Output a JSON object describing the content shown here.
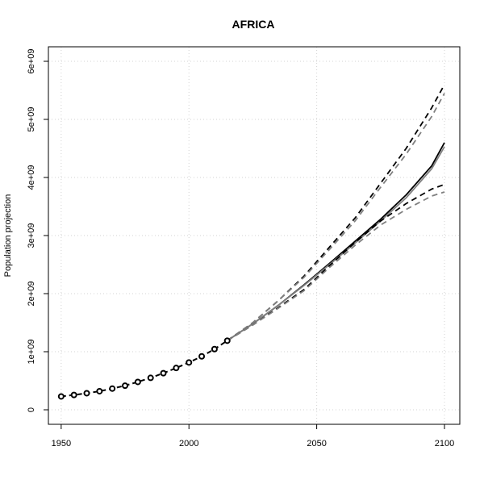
{
  "chart_data": {
    "type": "line",
    "title": "AFRICA",
    "xlabel": "",
    "ylabel": "Population projection",
    "xlim": [
      1945,
      2106
    ],
    "ylim": [
      -250000000,
      6250000000
    ],
    "x_ticks": [
      1950,
      2000,
      2050,
      2100
    ],
    "x_tick_labels": [
      "1950",
      "2000",
      "2050",
      "2100"
    ],
    "y_ticks": [
      0,
      1000000000,
      2000000000,
      3000000000,
      4000000000,
      5000000000,
      6000000000
    ],
    "y_tick_labels": [
      "0",
      "1e+09",
      "2e+09",
      "3e+09",
      "4e+09",
      "5e+09",
      "6e+09"
    ],
    "grid": true,
    "observed": {
      "x": [
        1950,
        1955,
        1960,
        1965,
        1970,
        1975,
        1980,
        1985,
        1990,
        1995,
        2000,
        2005,
        2010,
        2015
      ],
      "y": [
        230000000,
        255000000,
        285000000,
        320000000,
        365000000,
        415000000,
        480000000,
        550000000,
        630000000,
        720000000,
        815000000,
        920000000,
        1045000000,
        1190000000
      ]
    },
    "series": [
      {
        "style": "solid",
        "color": "#000000",
        "x": [
          2015,
          2025,
          2035,
          2045,
          2055,
          2065,
          2075,
          2085,
          2095,
          2100
        ],
        "y": [
          1190000000,
          1480000000,
          1800000000,
          2150000000,
          2520000000,
          2900000000,
          3280000000,
          3700000000,
          4200000000,
          4600000000
        ]
      },
      {
        "style": "solid",
        "color": "#808080",
        "x": [
          2015,
          2025,
          2035,
          2045,
          2055,
          2065,
          2075,
          2085,
          2095,
          2100
        ],
        "y": [
          1190000000,
          1480000000,
          1800000000,
          2140000000,
          2500000000,
          2870000000,
          3250000000,
          3650000000,
          4150000000,
          4530000000
        ]
      },
      {
        "style": "dashed",
        "color": "#000000",
        "x": [
          2015,
          2025,
          2035,
          2045,
          2055,
          2065,
          2075,
          2085,
          2095,
          2100
        ],
        "y": [
          1190000000,
          1500000000,
          1880000000,
          2300000000,
          2800000000,
          3300000000,
          3900000000,
          4500000000,
          5200000000,
          5600000000
        ]
      },
      {
        "style": "dashed",
        "color": "#808080",
        "x": [
          2015,
          2025,
          2035,
          2045,
          2055,
          2065,
          2075,
          2085,
          2095,
          2100
        ],
        "y": [
          1190000000,
          1500000000,
          1880000000,
          2280000000,
          2760000000,
          3250000000,
          3830000000,
          4400000000,
          5050000000,
          5450000000
        ]
      },
      {
        "style": "dashed",
        "color": "#000000",
        "x": [
          2015,
          2025,
          2035,
          2045,
          2055,
          2065,
          2075,
          2085,
          2095,
          2100
        ],
        "y": [
          1190000000,
          1460000000,
          1760000000,
          2070000000,
          2480000000,
          2880000000,
          3250000000,
          3550000000,
          3800000000,
          3880000000
        ]
      },
      {
        "style": "dashed",
        "color": "#808080",
        "x": [
          2015,
          2025,
          2035,
          2045,
          2055,
          2065,
          2075,
          2085,
          2095,
          2100
        ],
        "y": [
          1190000000,
          1460000000,
          1750000000,
          2050000000,
          2450000000,
          2830000000,
          3180000000,
          3450000000,
          3680000000,
          3750000000
        ]
      }
    ]
  }
}
